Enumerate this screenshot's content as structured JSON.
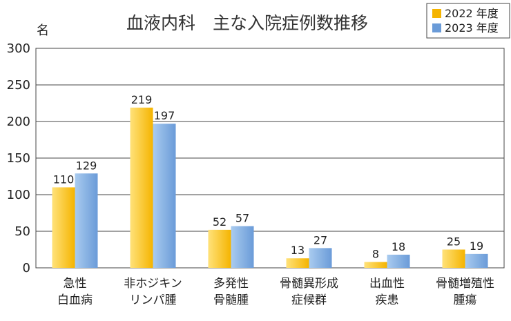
{
  "chart_data": {
    "type": "bar",
    "title": "血液内科　主な入院症例数推移",
    "ylabel": "名",
    "ylim": [
      0,
      300
    ],
    "yticks": [
      0,
      50,
      100,
      150,
      200,
      250,
      300
    ],
    "grid": true,
    "legend_position": "top-right",
    "categories": [
      [
        "急性",
        "白血病"
      ],
      [
        "非ホジキン",
        "リンパ腫"
      ],
      [
        "多発性",
        "骨髄腫"
      ],
      [
        "骨髄異形成",
        "症候群"
      ],
      [
        "出血性",
        "疾患"
      ],
      [
        "骨髄増殖性",
        "腫瘍"
      ]
    ],
    "series": [
      {
        "name": "2022 年度",
        "values": [
          110,
          219,
          52,
          13,
          8,
          25
        ],
        "color": "#F5B400",
        "color_light": "#FFE27A"
      },
      {
        "name": "2023 年度",
        "values": [
          129,
          197,
          57,
          27,
          18,
          19
        ],
        "color": "#6A9BD8",
        "color_light": "#A9CBEF"
      }
    ]
  }
}
